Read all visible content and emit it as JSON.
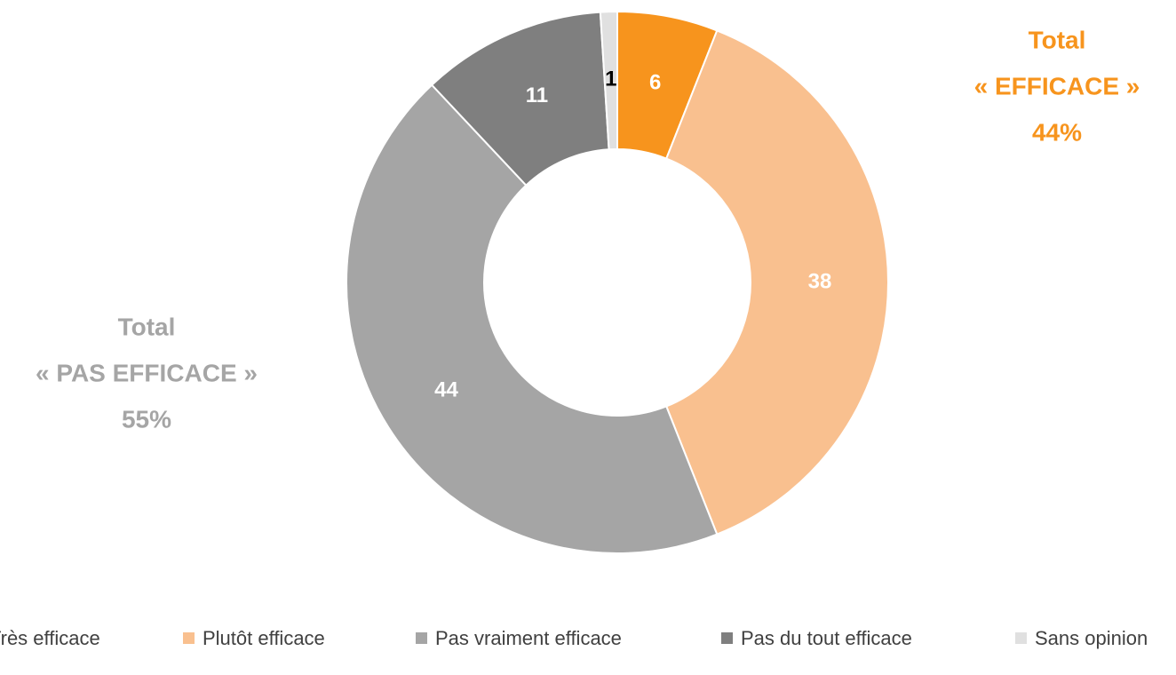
{
  "chart_data": {
    "type": "donut",
    "categories": [
      "Très efficace",
      "Plutôt efficace",
      "Pas vraiment efficace",
      "Pas du tout efficace",
      "Sans opinion"
    ],
    "values": [
      6,
      38,
      44,
      11,
      1
    ],
    "colors": [
      "#f7941d",
      "#f9c08f",
      "#a5a5a5",
      "#7f7f7f",
      "#e0e0e0"
    ],
    "label_colors": [
      "#ffffff",
      "#ffffff",
      "#ffffff",
      "#ffffff",
      "#000000"
    ],
    "legend": "bottom",
    "annotations": [
      {
        "lines": [
          "Total",
          "« EFFICACE »",
          "44%"
        ],
        "color": "#f7941d"
      },
      {
        "lines": [
          "Total",
          "« PAS EFFICACE »",
          "55%"
        ],
        "color": "#a5a5a5"
      }
    ]
  }
}
